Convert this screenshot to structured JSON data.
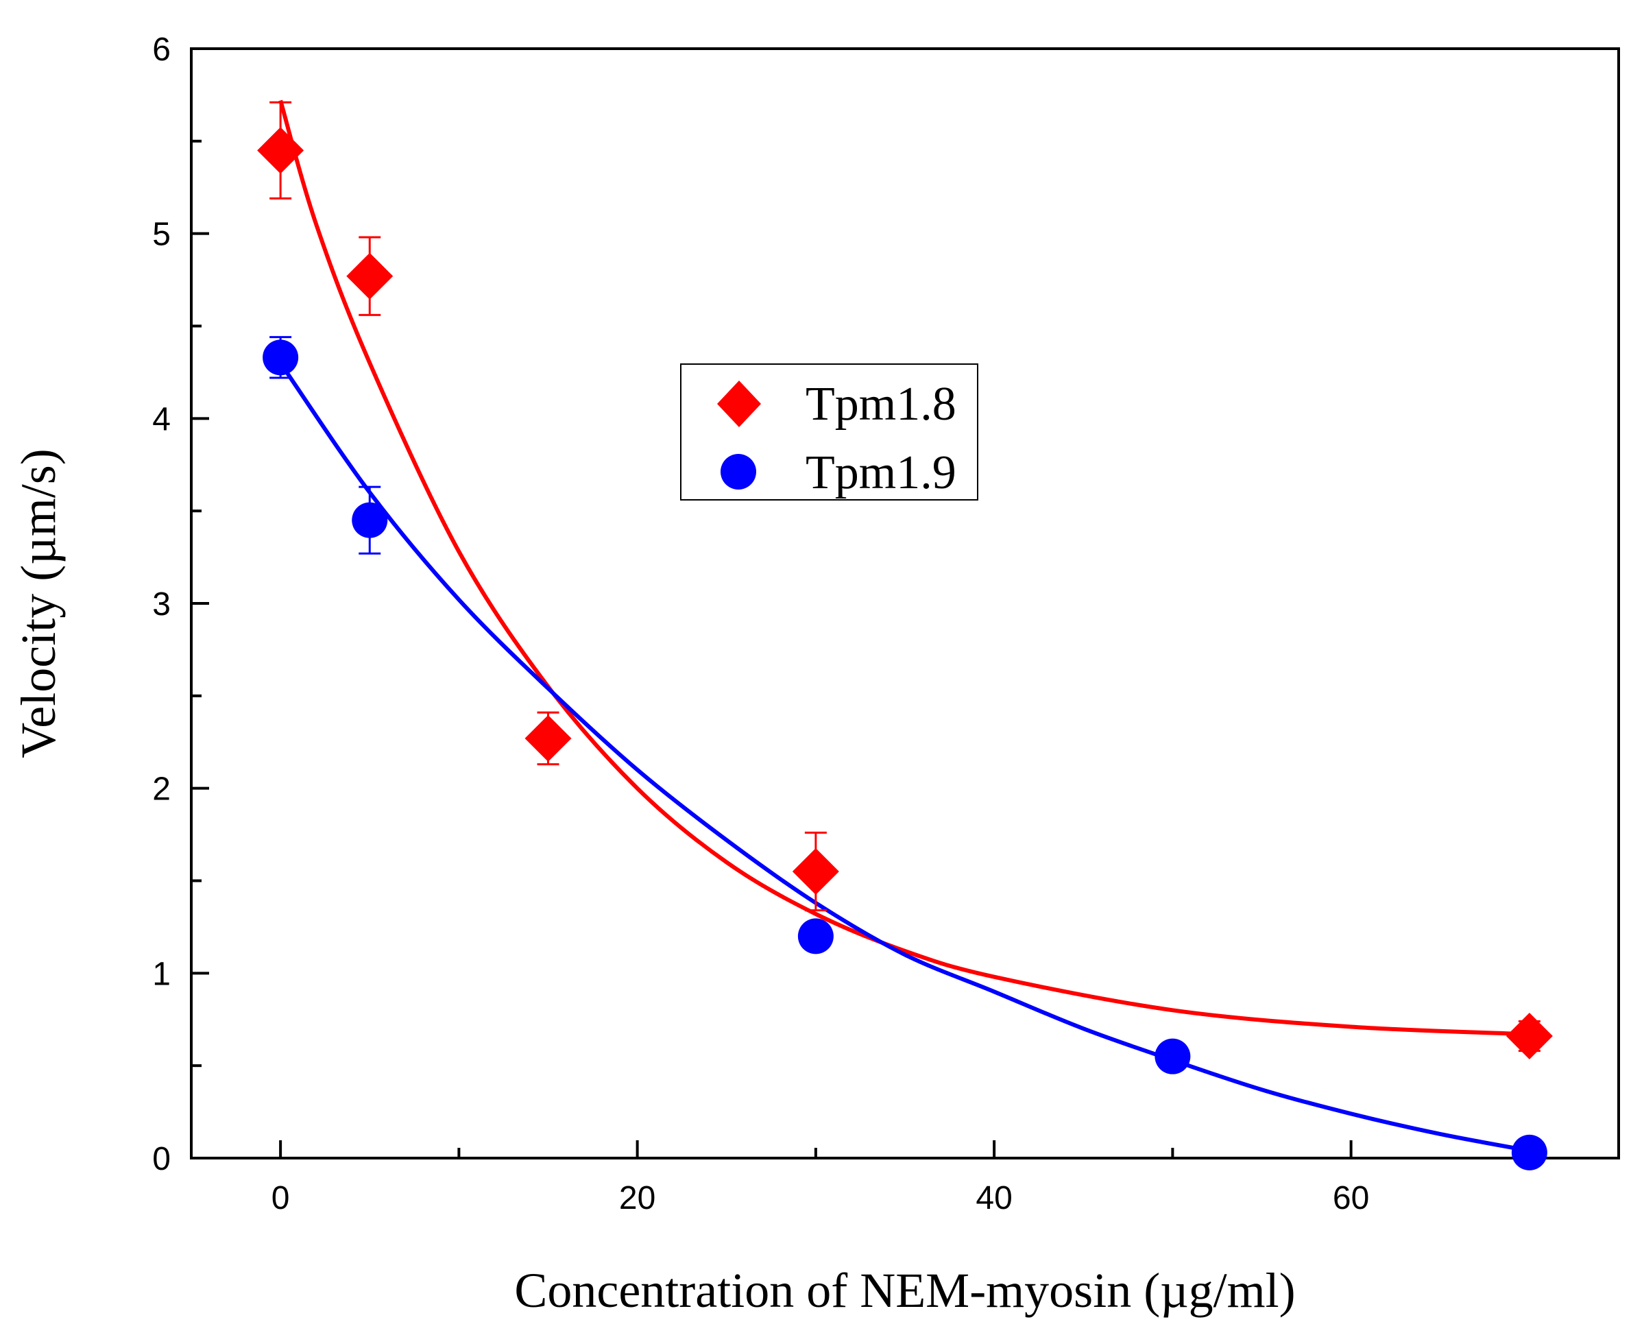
{
  "chart_data": {
    "type": "scatter",
    "title": "",
    "xlabel": "Concentration of NEM-myosin (µg/ml)",
    "ylabel": "Velocity (µm/s)",
    "xlim": [
      -5,
      75
    ],
    "ylim": [
      0,
      6
    ],
    "x_ticks": [
      0,
      20,
      40,
      60
    ],
    "x_tick_labels": [
      "0",
      "20",
      "40",
      "60"
    ],
    "x_minor_ticks": [
      10,
      30,
      50,
      70
    ],
    "y_ticks": [
      0,
      1,
      2,
      3,
      4,
      5,
      6
    ],
    "y_tick_labels": [
      "0",
      "1",
      "2",
      "3",
      "4",
      "5",
      "6"
    ],
    "y_minor_ticks": [
      0.5,
      1.5,
      2.5,
      3.5,
      4.5,
      5.5
    ],
    "grid": false,
    "legend_position": "center",
    "series": [
      {
        "name": "Tpm1.8",
        "color": "#ff0000",
        "marker": "diamond",
        "x": [
          0,
          5,
          15,
          30,
          70
        ],
        "y": [
          5.45,
          4.77,
          2.27,
          1.55,
          0.66
        ],
        "err": [
          0.26,
          0.21,
          0.14,
          0.21,
          0.08
        ],
        "fit": {
          "x": [
            0,
            2,
            5,
            10,
            15,
            20,
            25,
            30,
            35,
            40,
            50,
            60,
            70
          ],
          "y": [
            5.72,
            5.05,
            4.3,
            3.28,
            2.55,
            2.0,
            1.6,
            1.32,
            1.12,
            0.98,
            0.8,
            0.71,
            0.67
          ]
        }
      },
      {
        "name": "Tpm1.9",
        "color": "#0000ff",
        "marker": "circle",
        "x": [
          0,
          5,
          30,
          50,
          70
        ],
        "y": [
          4.33,
          3.45,
          1.2,
          0.55,
          0.03
        ],
        "err": [
          0.11,
          0.18,
          0.0,
          0.0,
          0.0
        ],
        "fit": {
          "x": [
            0,
            5,
            10,
            15,
            20,
            25,
            30,
            35,
            40,
            45,
            50,
            55,
            60,
            65,
            70
          ],
          "y": [
            4.3,
            3.6,
            3.02,
            2.54,
            2.1,
            1.72,
            1.38,
            1.1,
            0.9,
            0.7,
            0.53,
            0.37,
            0.24,
            0.13,
            0.04
          ]
        }
      }
    ]
  }
}
